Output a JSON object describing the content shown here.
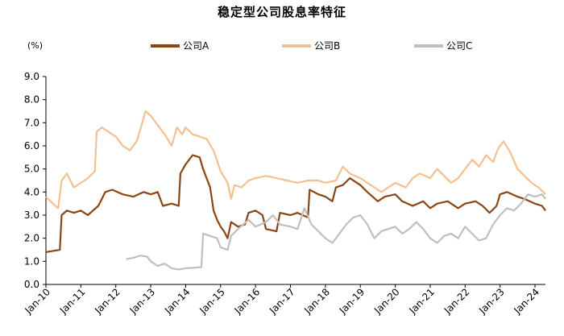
{
  "chart_data": {
    "type": "line",
    "title": "稳定型公司股息率特征",
    "unit_label": "(%)",
    "ylim": [
      0,
      9
    ],
    "yticks": [
      "0.0",
      "1.0",
      "2.0",
      "3.0",
      "4.0",
      "5.0",
      "6.0",
      "7.0",
      "8.0",
      "9.0"
    ],
    "x_categories": [
      "Jan-10",
      "Jan-11",
      "Jan-12",
      "Jan-13",
      "Jan-14",
      "Jan-15",
      "Jan-16",
      "Jan-17",
      "Jan-18",
      "Jan-19",
      "Jan-20",
      "Jan-21",
      "Jan-22",
      "Jan-23",
      "Jan-24"
    ],
    "x_range": [
      2010.0,
      2024.3
    ],
    "grid": false,
    "legend_position": "top",
    "series": [
      {
        "name": "公司A",
        "color": "#8B4513",
        "points": [
          [
            2010.0,
            1.4
          ],
          [
            2010.2,
            1.45
          ],
          [
            2010.4,
            1.5
          ],
          [
            2010.45,
            3.0
          ],
          [
            2010.6,
            3.2
          ],
          [
            2010.8,
            3.1
          ],
          [
            2011.0,
            3.2
          ],
          [
            2011.2,
            3.0
          ],
          [
            2011.5,
            3.4
          ],
          [
            2011.7,
            4.0
          ],
          [
            2011.9,
            4.1
          ],
          [
            2012.2,
            3.9
          ],
          [
            2012.5,
            3.8
          ],
          [
            2012.8,
            4.0
          ],
          [
            2013.0,
            3.9
          ],
          [
            2013.2,
            4.0
          ],
          [
            2013.35,
            3.4
          ],
          [
            2013.6,
            3.5
          ],
          [
            2013.8,
            3.4
          ],
          [
            2013.85,
            4.8
          ],
          [
            2014.0,
            5.2
          ],
          [
            2014.2,
            5.6
          ],
          [
            2014.4,
            5.5
          ],
          [
            2014.5,
            5.0
          ],
          [
            2014.6,
            4.6
          ],
          [
            2014.7,
            4.2
          ],
          [
            2014.8,
            3.2
          ],
          [
            2014.9,
            2.8
          ],
          [
            2015.0,
            2.5
          ],
          [
            2015.1,
            2.3
          ],
          [
            2015.2,
            2.0
          ],
          [
            2015.3,
            2.7
          ],
          [
            2015.5,
            2.5
          ],
          [
            2015.7,
            2.6
          ],
          [
            2015.8,
            3.1
          ],
          [
            2016.0,
            3.2
          ],
          [
            2016.2,
            3.0
          ],
          [
            2016.3,
            2.4
          ],
          [
            2016.6,
            2.3
          ],
          [
            2016.7,
            3.1
          ],
          [
            2017.0,
            3.0
          ],
          [
            2017.2,
            3.1
          ],
          [
            2017.35,
            3.0
          ],
          [
            2017.5,
            2.9
          ],
          [
            2017.55,
            4.1
          ],
          [
            2017.8,
            3.9
          ],
          [
            2018.0,
            3.8
          ],
          [
            2018.2,
            3.6
          ],
          [
            2018.3,
            4.2
          ],
          [
            2018.5,
            4.3
          ],
          [
            2018.7,
            4.6
          ],
          [
            2019.0,
            4.3
          ],
          [
            2019.2,
            4.0
          ],
          [
            2019.5,
            3.6
          ],
          [
            2019.7,
            3.8
          ],
          [
            2020.0,
            3.9
          ],
          [
            2020.2,
            3.6
          ],
          [
            2020.5,
            3.4
          ],
          [
            2020.8,
            3.6
          ],
          [
            2021.0,
            3.3
          ],
          [
            2021.2,
            3.5
          ],
          [
            2021.5,
            3.6
          ],
          [
            2021.8,
            3.3
          ],
          [
            2022.0,
            3.5
          ],
          [
            2022.3,
            3.6
          ],
          [
            2022.5,
            3.4
          ],
          [
            2022.7,
            3.1
          ],
          [
            2022.9,
            3.4
          ],
          [
            2023.0,
            3.9
          ],
          [
            2023.2,
            4.0
          ],
          [
            2023.5,
            3.8
          ],
          [
            2023.7,
            3.7
          ],
          [
            2024.0,
            3.5
          ],
          [
            2024.2,
            3.4
          ],
          [
            2024.3,
            3.2
          ]
        ]
      },
      {
        "name": "公司B",
        "color": "#F4C08F",
        "points": [
          [
            2010.0,
            3.8
          ],
          [
            2010.2,
            3.5
          ],
          [
            2010.35,
            3.3
          ],
          [
            2010.45,
            4.5
          ],
          [
            2010.6,
            4.8
          ],
          [
            2010.8,
            4.2
          ],
          [
            2011.0,
            4.4
          ],
          [
            2011.2,
            4.6
          ],
          [
            2011.4,
            4.9
          ],
          [
            2011.45,
            6.6
          ],
          [
            2011.6,
            6.8
          ],
          [
            2011.8,
            6.6
          ],
          [
            2012.0,
            6.4
          ],
          [
            2012.2,
            6.0
          ],
          [
            2012.4,
            5.8
          ],
          [
            2012.6,
            6.2
          ],
          [
            2012.7,
            6.7
          ],
          [
            2012.85,
            7.5
          ],
          [
            2013.0,
            7.3
          ],
          [
            2013.2,
            6.9
          ],
          [
            2013.4,
            6.5
          ],
          [
            2013.6,
            6.0
          ],
          [
            2013.75,
            6.8
          ],
          [
            2013.9,
            6.5
          ],
          [
            2014.0,
            6.8
          ],
          [
            2014.2,
            6.5
          ],
          [
            2014.4,
            6.4
          ],
          [
            2014.6,
            6.3
          ],
          [
            2014.8,
            5.8
          ],
          [
            2015.0,
            4.9
          ],
          [
            2015.2,
            4.4
          ],
          [
            2015.3,
            3.7
          ],
          [
            2015.4,
            4.3
          ],
          [
            2015.6,
            4.2
          ],
          [
            2015.8,
            4.5
          ],
          [
            2016.0,
            4.6
          ],
          [
            2016.3,
            4.7
          ],
          [
            2016.6,
            4.6
          ],
          [
            2016.9,
            4.5
          ],
          [
            2017.2,
            4.4
          ],
          [
            2017.5,
            4.5
          ],
          [
            2017.8,
            4.5
          ],
          [
            2018.0,
            4.4
          ],
          [
            2018.3,
            4.5
          ],
          [
            2018.5,
            5.1
          ],
          [
            2018.7,
            4.8
          ],
          [
            2019.0,
            4.6
          ],
          [
            2019.3,
            4.3
          ],
          [
            2019.6,
            4.0
          ],
          [
            2019.8,
            4.2
          ],
          [
            2020.0,
            4.4
          ],
          [
            2020.3,
            4.2
          ],
          [
            2020.5,
            4.6
          ],
          [
            2020.7,
            4.8
          ],
          [
            2021.0,
            4.6
          ],
          [
            2021.2,
            5.0
          ],
          [
            2021.4,
            4.7
          ],
          [
            2021.6,
            4.4
          ],
          [
            2021.8,
            4.6
          ],
          [
            2022.0,
            5.0
          ],
          [
            2022.2,
            5.4
          ],
          [
            2022.4,
            5.1
          ],
          [
            2022.6,
            5.6
          ],
          [
            2022.8,
            5.3
          ],
          [
            2022.95,
            5.9
          ],
          [
            2023.1,
            6.2
          ],
          [
            2023.3,
            5.7
          ],
          [
            2023.5,
            5.0
          ],
          [
            2023.7,
            4.7
          ],
          [
            2023.9,
            4.4
          ],
          [
            2024.1,
            4.2
          ],
          [
            2024.3,
            3.9
          ]
        ]
      },
      {
        "name": "公司C",
        "color": "#BFBFBF",
        "points": [
          [
            2012.3,
            1.1
          ],
          [
            2012.5,
            1.15
          ],
          [
            2012.7,
            1.25
          ],
          [
            2012.9,
            1.2
          ],
          [
            2013.0,
            1.0
          ],
          [
            2013.2,
            0.8
          ],
          [
            2013.4,
            0.9
          ],
          [
            2013.6,
            0.7
          ],
          [
            2013.8,
            0.65
          ],
          [
            2014.0,
            0.7
          ],
          [
            2014.2,
            0.72
          ],
          [
            2014.45,
            0.75
          ],
          [
            2014.5,
            2.2
          ],
          [
            2014.7,
            2.1
          ],
          [
            2014.9,
            2.0
          ],
          [
            2015.0,
            1.6
          ],
          [
            2015.2,
            1.5
          ],
          [
            2015.3,
            2.1
          ],
          [
            2015.5,
            2.4
          ],
          [
            2015.8,
            2.8
          ],
          [
            2016.0,
            2.5
          ],
          [
            2016.3,
            2.7
          ],
          [
            2016.5,
            3.0
          ],
          [
            2016.7,
            2.6
          ],
          [
            2017.0,
            2.5
          ],
          [
            2017.2,
            2.4
          ],
          [
            2017.4,
            3.3
          ],
          [
            2017.6,
            2.6
          ],
          [
            2017.8,
            2.3
          ],
          [
            2018.0,
            2.0
          ],
          [
            2018.2,
            1.8
          ],
          [
            2018.4,
            2.2
          ],
          [
            2018.6,
            2.6
          ],
          [
            2018.8,
            2.9
          ],
          [
            2019.0,
            3.0
          ],
          [
            2019.2,
            2.6
          ],
          [
            2019.4,
            2.0
          ],
          [
            2019.6,
            2.3
          ],
          [
            2019.8,
            2.4
          ],
          [
            2020.0,
            2.5
          ],
          [
            2020.2,
            2.2
          ],
          [
            2020.4,
            2.4
          ],
          [
            2020.6,
            2.7
          ],
          [
            2020.8,
            2.4
          ],
          [
            2021.0,
            2.0
          ],
          [
            2021.2,
            1.8
          ],
          [
            2021.4,
            2.1
          ],
          [
            2021.6,
            2.2
          ],
          [
            2021.8,
            2.0
          ],
          [
            2022.0,
            2.5
          ],
          [
            2022.2,
            2.2
          ],
          [
            2022.4,
            1.9
          ],
          [
            2022.6,
            2.0
          ],
          [
            2022.8,
            2.6
          ],
          [
            2023.0,
            3.0
          ],
          [
            2023.2,
            3.3
          ],
          [
            2023.4,
            3.2
          ],
          [
            2023.6,
            3.5
          ],
          [
            2023.8,
            3.9
          ],
          [
            2024.0,
            3.8
          ],
          [
            2024.2,
            3.9
          ],
          [
            2024.3,
            3.7
          ]
        ]
      }
    ]
  }
}
